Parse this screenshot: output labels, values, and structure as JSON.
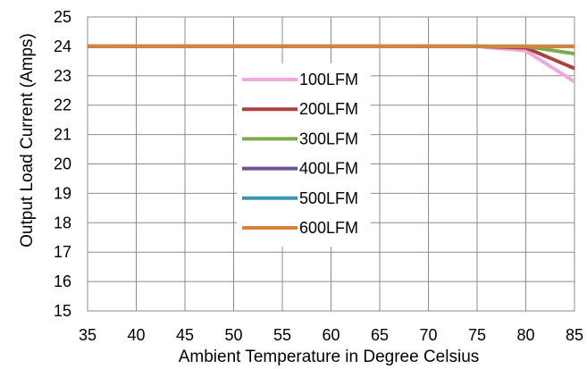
{
  "chart_data": {
    "type": "line",
    "title": "",
    "xlabel": "Ambient Temperature in Degree Celsius",
    "ylabel": "Output Load Current (Amps)",
    "xlim": [
      35,
      85
    ],
    "ylim": [
      15,
      25
    ],
    "xticks": [
      "35",
      "40",
      "45",
      "50",
      "55",
      "60",
      "65",
      "70",
      "75",
      "80",
      "85"
    ],
    "yticks": [
      "15",
      "16",
      "17",
      "18",
      "19",
      "20",
      "21",
      "22",
      "23",
      "24",
      "25"
    ],
    "grid": true,
    "legend_position": "center",
    "series": [
      {
        "name": "100LFM",
        "color": "#f0a6e0",
        "x": [
          35,
          75,
          80,
          85
        ],
        "y": [
          24,
          24,
          23.85,
          22.8
        ]
      },
      {
        "name": "200LFM",
        "color": "#b04040",
        "x": [
          35,
          75,
          80,
          85
        ],
        "y": [
          24,
          24,
          23.95,
          23.25
        ]
      },
      {
        "name": "300LFM",
        "color": "#7eaa4a",
        "x": [
          35,
          80,
          85
        ],
        "y": [
          24,
          24,
          23.75
        ]
      },
      {
        "name": "400LFM",
        "color": "#70529a",
        "x": [
          35,
          85
        ],
        "y": [
          24,
          24
        ]
      },
      {
        "name": "500LFM",
        "color": "#3a97b3",
        "x": [
          35,
          85
        ],
        "y": [
          24,
          24
        ]
      },
      {
        "name": "600LFM",
        "color": "#d9833a",
        "x": [
          35,
          85
        ],
        "y": [
          24,
          24
        ]
      }
    ]
  }
}
